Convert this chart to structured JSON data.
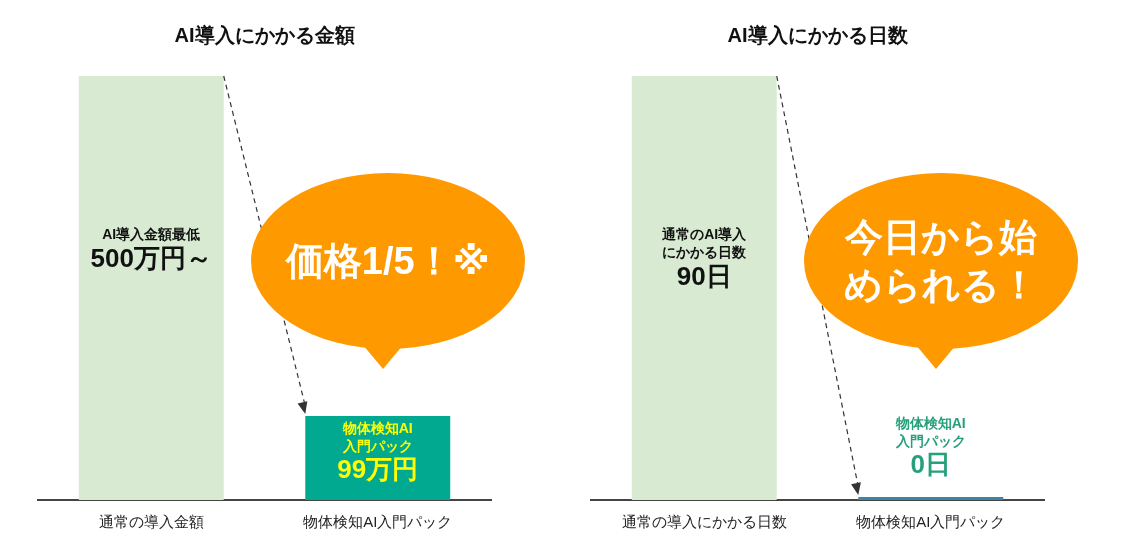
{
  "chart_data": [
    {
      "type": "bar",
      "title": "AI導入にかかる金額",
      "categories": [
        "通常の導入金額",
        "物体検知AI入門パック"
      ],
      "values": [
        500,
        99
      ],
      "colors": [
        "#d9ead3",
        "#00a98f"
      ],
      "value_labels": [
        "AI導入金額最低500万円～",
        "物体検知AI入門パック99万円"
      ],
      "annotations": [
        "価格1/5！※"
      ]
    },
    {
      "type": "bar",
      "title": "AI導入にかかる日数",
      "categories": [
        "通常の導入にかかる日数",
        "物体検知AI入門パック"
      ],
      "values": [
        90,
        0
      ],
      "colors": [
        "#d9ead3",
        "#3d85a8"
      ],
      "value_labels": [
        "通常のAI導入にかかる日数90日",
        "物体検知AI入門パック0日"
      ],
      "annotations": [
        "今日から始められる！"
      ]
    }
  ]
}
